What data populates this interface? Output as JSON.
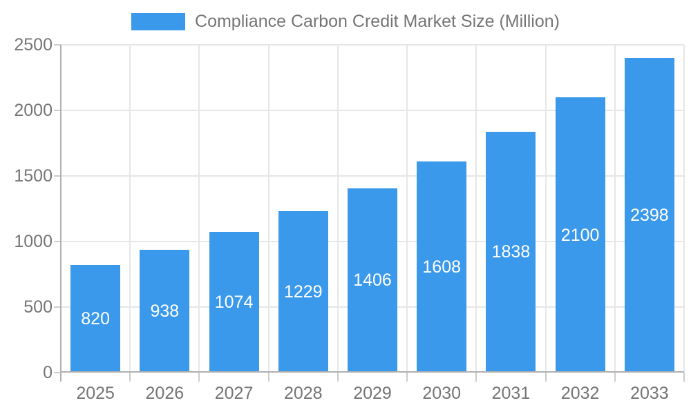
{
  "chart_data": {
    "type": "bar",
    "title": "Compliance Carbon Credit Market Size (Million)",
    "categories": [
      "2025",
      "2026",
      "2027",
      "2028",
      "2029",
      "2030",
      "2031",
      "2032",
      "2033"
    ],
    "values": [
      820,
      938,
      1074,
      1229,
      1406,
      1608,
      1838,
      2100,
      2398
    ],
    "series": [
      {
        "name": "Compliance Carbon Credit Market Size (Million)",
        "values": [
          820,
          938,
          1074,
          1229,
          1406,
          1608,
          1838,
          2100,
          2398
        ]
      }
    ],
    "xlabel": "",
    "ylabel": "",
    "ylim": [
      0,
      2500
    ],
    "yticks": [
      0,
      500,
      1000,
      1500,
      2000,
      2500
    ],
    "grid": true,
    "legend_position": "top",
    "value_labels": "inside-center",
    "colors": {
      "bar": "#3B99EC",
      "value_label": "#ffffff",
      "axis_text": "#757575",
      "gridline": "#e6e6e6",
      "axis_line": "#b0b0b0",
      "tick": "#cccccc",
      "background": "#ffffff"
    }
  }
}
